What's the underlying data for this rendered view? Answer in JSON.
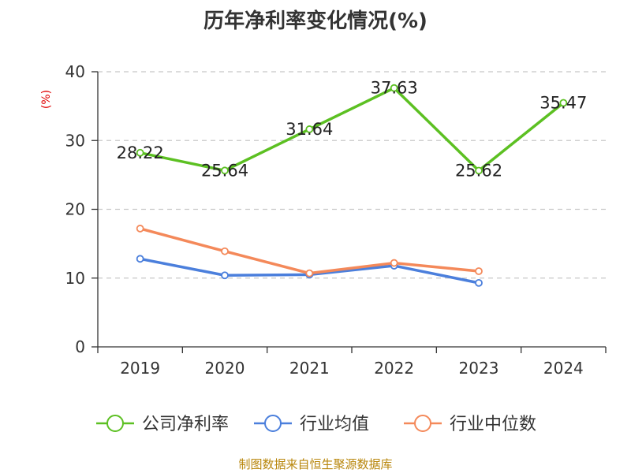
{
  "chart_data": {
    "type": "line",
    "title": "历年净利率变化情况(%)",
    "ylabel": "(%)",
    "categories": [
      "2019",
      "2020",
      "2021",
      "2022",
      "2023",
      "2024"
    ],
    "ylim": [
      0,
      40
    ],
    "yticks": [
      0,
      10,
      20,
      30,
      40
    ],
    "grid": true,
    "legend_position": "bottom",
    "series": [
      {
        "name": "公司净利率",
        "color": "#5cc022",
        "values": [
          28.22,
          25.64,
          31.64,
          37.63,
          25.62,
          35.47
        ],
        "labels": [
          "28.22",
          "25.64",
          "31.64",
          "37.63",
          "25.62",
          "35.47"
        ]
      },
      {
        "name": "行业均值",
        "color": "#4b7fdc",
        "values": [
          12.8,
          10.4,
          10.5,
          11.8,
          9.3,
          null
        ]
      },
      {
        "name": "行业中位数",
        "color": "#f4895a",
        "values": [
          17.2,
          13.9,
          10.7,
          12.2,
          11.0,
          null
        ]
      }
    ],
    "source": "制图数据来自恒生聚源数据库"
  }
}
